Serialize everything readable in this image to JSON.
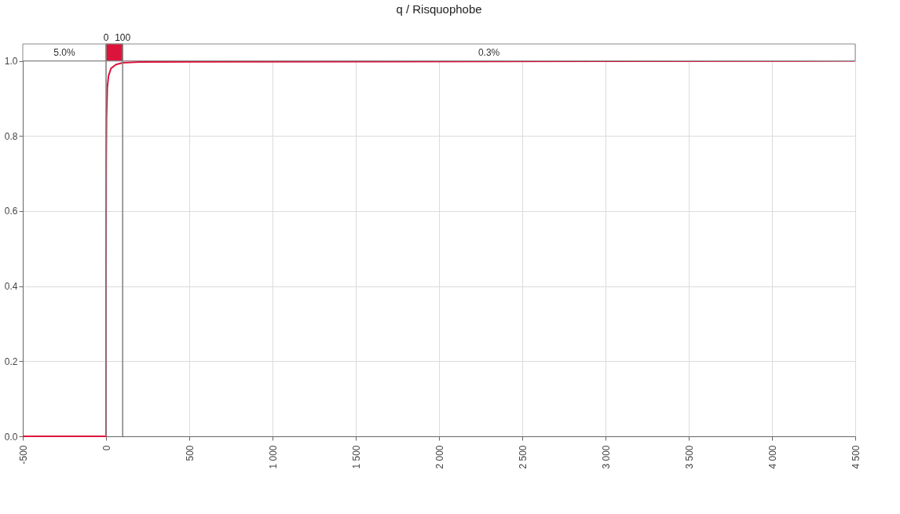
{
  "chart_data": {
    "type": "line",
    "title": "q / Risquophobe",
    "x": [
      -500,
      0,
      0,
      1,
      3,
      8,
      15,
      30,
      60,
      100,
      200,
      4500
    ],
    "series": [
      {
        "color": "#dc143c",
        "values": [
          0,
          0,
          0.45,
          0.73,
          0.85,
          0.93,
          0.96,
          0.98,
          0.99,
          0.995,
          0.997,
          1.0
        ]
      }
    ],
    "xlim": [
      -500,
      4500
    ],
    "xticks": [
      -500,
      0,
      500,
      {
        "value": 1000,
        "label": "1 000"
      },
      {
        "value": 1500,
        "label": "1 500"
      },
      {
        "value": 2000,
        "label": "2 000"
      },
      {
        "value": 2500,
        "label": "2 500"
      },
      {
        "value": 3000,
        "label": "3 000"
      },
      {
        "value": 3500,
        "label": "3 500"
      },
      {
        "value": 4000,
        "label": "4 000"
      },
      {
        "value": 4500,
        "label": "4 500"
      }
    ],
    "ylim": [
      0,
      1.045
    ],
    "yticks": [
      {
        "value": 0,
        "label": "0.0"
      },
      0.2,
      0.4,
      0.6,
      0.8,
      {
        "value": 1,
        "label": "1.0"
      }
    ],
    "ref_lines": [
      {
        "axis": "x",
        "value": 0,
        "label": "0",
        "color": "#808080"
      },
      {
        "axis": "x",
        "value": 100,
        "label": "100",
        "color": "#808080"
      }
    ],
    "bands": [
      {
        "axis": "y",
        "from": 1.0,
        "to": 1.045,
        "color": "#ffffff"
      },
      {
        "axis": "x",
        "from": 0,
        "to": 100,
        "color": "#dc143c"
      }
    ],
    "annotations": [
      "5.0%",
      "0.3%"
    ],
    "grid": true,
    "marker": "none",
    "line_style": "solid"
  }
}
